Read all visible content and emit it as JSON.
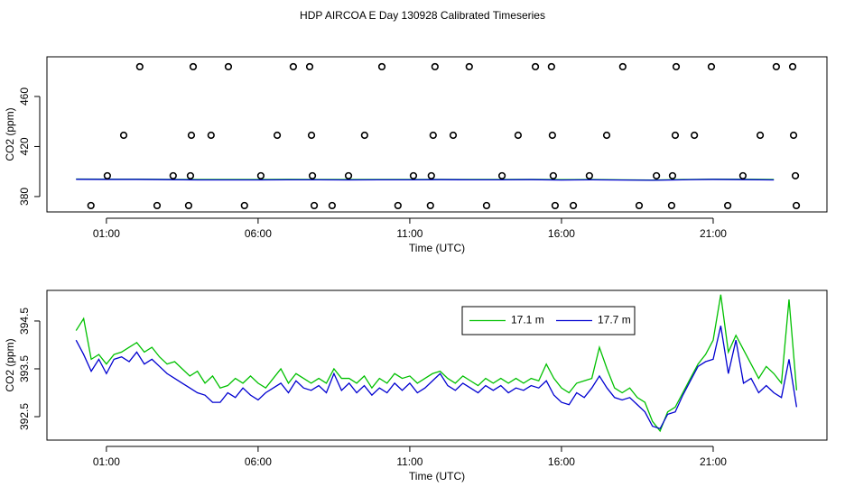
{
  "title": "HDP AIRCOA E  Day 130928  Calibrated Timeseries",
  "chart_data": [
    {
      "type": "line",
      "xlabel": "Time (UTC)",
      "ylabel": "CO2 (ppm)",
      "xlim": [
        -0.96,
        24.75
      ],
      "ylim": [
        367.7,
        491.7
      ],
      "xticks": [
        {
          "value": 1,
          "label": "01:00"
        },
        {
          "value": 6,
          "label": "06:00"
        },
        {
          "value": 11,
          "label": "11:00"
        },
        {
          "value": 16,
          "label": "16:00"
        },
        {
          "value": 21,
          "label": "21:00"
        }
      ],
      "yticks": [
        380,
        420,
        460
      ],
      "legend": false,
      "x": [
        0,
        1,
        2,
        3,
        4,
        5,
        6,
        7,
        8,
        9,
        10,
        11,
        12,
        13,
        14,
        15,
        16,
        17,
        18,
        19,
        20,
        21,
        22,
        23
      ],
      "series": [
        {
          "name": "17.1 m",
          "color": "#00c000",
          "values": [
            394.0,
            393.9,
            393.9,
            393.7,
            393.6,
            393.6,
            393.6,
            393.7,
            393.6,
            393.6,
            393.6,
            393.6,
            393.7,
            393.6,
            393.6,
            393.7,
            393.5,
            393.6,
            393.4,
            393.2,
            393.6,
            393.9,
            393.8,
            393.6
          ]
        },
        {
          "name": "17.7 m",
          "color": "#0000d0",
          "values": [
            393.8,
            393.7,
            393.7,
            393.5,
            393.3,
            393.3,
            393.3,
            393.4,
            393.4,
            393.3,
            393.4,
            393.4,
            393.5,
            393.4,
            393.4,
            393.5,
            393.2,
            393.4,
            393.2,
            393.0,
            393.4,
            393.7,
            393.5,
            393.3
          ]
        }
      ],
      "scatter": {
        "color": "#000000",
        "x": [
          2.1,
          3.86,
          5.02,
          7.16,
          7.7,
          10.08,
          11.83,
          12.96,
          15.14,
          15.67,
          18.02,
          19.78,
          20.94,
          23.08,
          23.62,
          1.57,
          3.8,
          4.45,
          6.63,
          7.76,
          9.51,
          11.77,
          12.43,
          14.57,
          15.7,
          17.49,
          19.75,
          20.38,
          22.55,
          23.65,
          1.03,
          3.2,
          3.77,
          6.09,
          7.79,
          8.98,
          11.12,
          11.71,
          14.04,
          15.73,
          16.92,
          19.13,
          19.66,
          21.98,
          23.71,
          0.49,
          2.67,
          3.71,
          5.55,
          7.85,
          8.44,
          10.61,
          11.68,
          13.53,
          15.79,
          16.39,
          18.56,
          19.63,
          21.48,
          23.74
        ],
        "y": [
          483.8,
          483.8,
          483.8,
          483.8,
          483.8,
          483.8,
          483.8,
          483.8,
          483.8,
          483.8,
          483.8,
          483.8,
          483.8,
          483.8,
          483.8,
          429.0,
          429.0,
          429.0,
          429.0,
          429.0,
          429.0,
          429.0,
          429.0,
          429.0,
          429.0,
          429.0,
          429.0,
          429.0,
          429.0,
          429.0,
          396.6,
          396.6,
          396.6,
          396.6,
          396.6,
          396.6,
          396.6,
          396.6,
          396.6,
          396.6,
          396.6,
          396.6,
          396.6,
          396.6,
          396.6,
          372.8,
          372.8,
          372.8,
          372.8,
          372.8,
          372.8,
          372.8,
          372.8,
          372.8,
          372.8,
          372.8,
          372.8,
          372.8,
          372.8,
          372.8
        ]
      }
    },
    {
      "type": "line",
      "xlabel": "Time (UTC)",
      "ylabel": "CO2 (ppm)",
      "xlim": [
        -0.96,
        24.75
      ],
      "ylim": [
        392.01,
        395.14
      ],
      "xticks": [
        {
          "value": 1,
          "label": "01:00"
        },
        {
          "value": 6,
          "label": "06:00"
        },
        {
          "value": 11,
          "label": "11:00"
        },
        {
          "value": 16,
          "label": "16:00"
        },
        {
          "value": 21,
          "label": "21:00"
        }
      ],
      "yticks": [
        392.5,
        393.5,
        394.5
      ],
      "legend": "top-right",
      "x": [
        0,
        0.25,
        0.5,
        0.75,
        1,
        1.25,
        1.5,
        1.75,
        2,
        2.25,
        2.5,
        2.75,
        3,
        3.25,
        3.5,
        3.75,
        4,
        4.25,
        4.5,
        4.75,
        5,
        5.25,
        5.5,
        5.75,
        6,
        6.25,
        6.5,
        6.75,
        7,
        7.25,
        7.5,
        7.75,
        8,
        8.25,
        8.5,
        8.75,
        9,
        9.25,
        9.5,
        9.75,
        10,
        10.25,
        10.5,
        10.75,
        11,
        11.25,
        11.5,
        11.75,
        12,
        12.25,
        12.5,
        12.75,
        13,
        13.25,
        13.5,
        13.75,
        14,
        14.25,
        14.5,
        14.75,
        15,
        15.25,
        15.5,
        15.75,
        16,
        16.25,
        16.5,
        16.75,
        17,
        17.25,
        17.5,
        17.75,
        18,
        18.25,
        18.5,
        18.75,
        19,
        19.25,
        19.5,
        19.75,
        20,
        20.25,
        20.5,
        20.75,
        21,
        21.25,
        21.5,
        21.75,
        22,
        22.25,
        22.5,
        22.75,
        23,
        23.25,
        23.5,
        23.75
      ],
      "series": [
        {
          "name": "17.1 m",
          "color": "#00c000",
          "values": [
            394.3,
            394.55,
            393.7,
            393.8,
            393.6,
            393.8,
            393.85,
            393.95,
            394.05,
            393.85,
            393.95,
            393.75,
            393.6,
            393.65,
            393.5,
            393.35,
            393.45,
            393.2,
            393.35,
            393.1,
            393.15,
            393.3,
            393.2,
            393.35,
            393.2,
            393.1,
            393.3,
            393.5,
            393.2,
            393.4,
            393.3,
            393.2,
            393.3,
            393.2,
            393.5,
            393.3,
            393.3,
            393.2,
            393.35,
            393.1,
            393.3,
            393.2,
            393.4,
            393.3,
            393.35,
            393.2,
            393.3,
            393.4,
            393.45,
            393.3,
            393.2,
            393.35,
            393.25,
            393.15,
            393.3,
            393.2,
            393.3,
            393.2,
            393.3,
            393.2,
            393.3,
            393.25,
            393.6,
            393.3,
            393.1,
            393.0,
            393.2,
            393.25,
            393.3,
            393.95,
            393.5,
            393.1,
            393.0,
            393.1,
            392.9,
            392.8,
            392.4,
            392.2,
            392.6,
            392.7,
            393.0,
            393.3,
            393.6,
            393.8,
            394.1,
            395.05,
            393.85,
            394.2,
            393.9,
            393.6,
            393.3,
            393.55,
            393.4,
            393.2,
            394.95,
            393.05
          ]
        },
        {
          "name": "17.7 m",
          "color": "#0000d0",
          "values": [
            394.1,
            393.8,
            393.45,
            393.7,
            393.4,
            393.7,
            393.75,
            393.65,
            393.85,
            393.6,
            393.7,
            393.55,
            393.4,
            393.3,
            393.2,
            393.1,
            393.0,
            392.95,
            392.8,
            392.8,
            393.0,
            392.9,
            393.1,
            392.95,
            392.85,
            393.0,
            393.1,
            393.2,
            393.0,
            393.25,
            393.1,
            393.05,
            393.15,
            393.0,
            393.4,
            393.05,
            393.2,
            393.0,
            393.15,
            392.95,
            393.1,
            393.0,
            393.2,
            393.05,
            393.2,
            393.0,
            393.1,
            393.25,
            393.4,
            393.15,
            393.05,
            393.2,
            393.1,
            393.0,
            393.15,
            393.05,
            393.15,
            393.0,
            393.1,
            393.05,
            393.15,
            393.1,
            393.25,
            392.95,
            392.8,
            392.75,
            393.0,
            392.9,
            393.1,
            393.35,
            393.1,
            392.9,
            392.85,
            392.9,
            392.75,
            392.6,
            392.3,
            392.25,
            392.55,
            392.6,
            392.95,
            393.25,
            393.55,
            393.65,
            393.7,
            394.4,
            393.4,
            394.1,
            393.2,
            393.3,
            393.0,
            393.15,
            393.0,
            392.9,
            393.7,
            392.7
          ]
        }
      ]
    }
  ]
}
